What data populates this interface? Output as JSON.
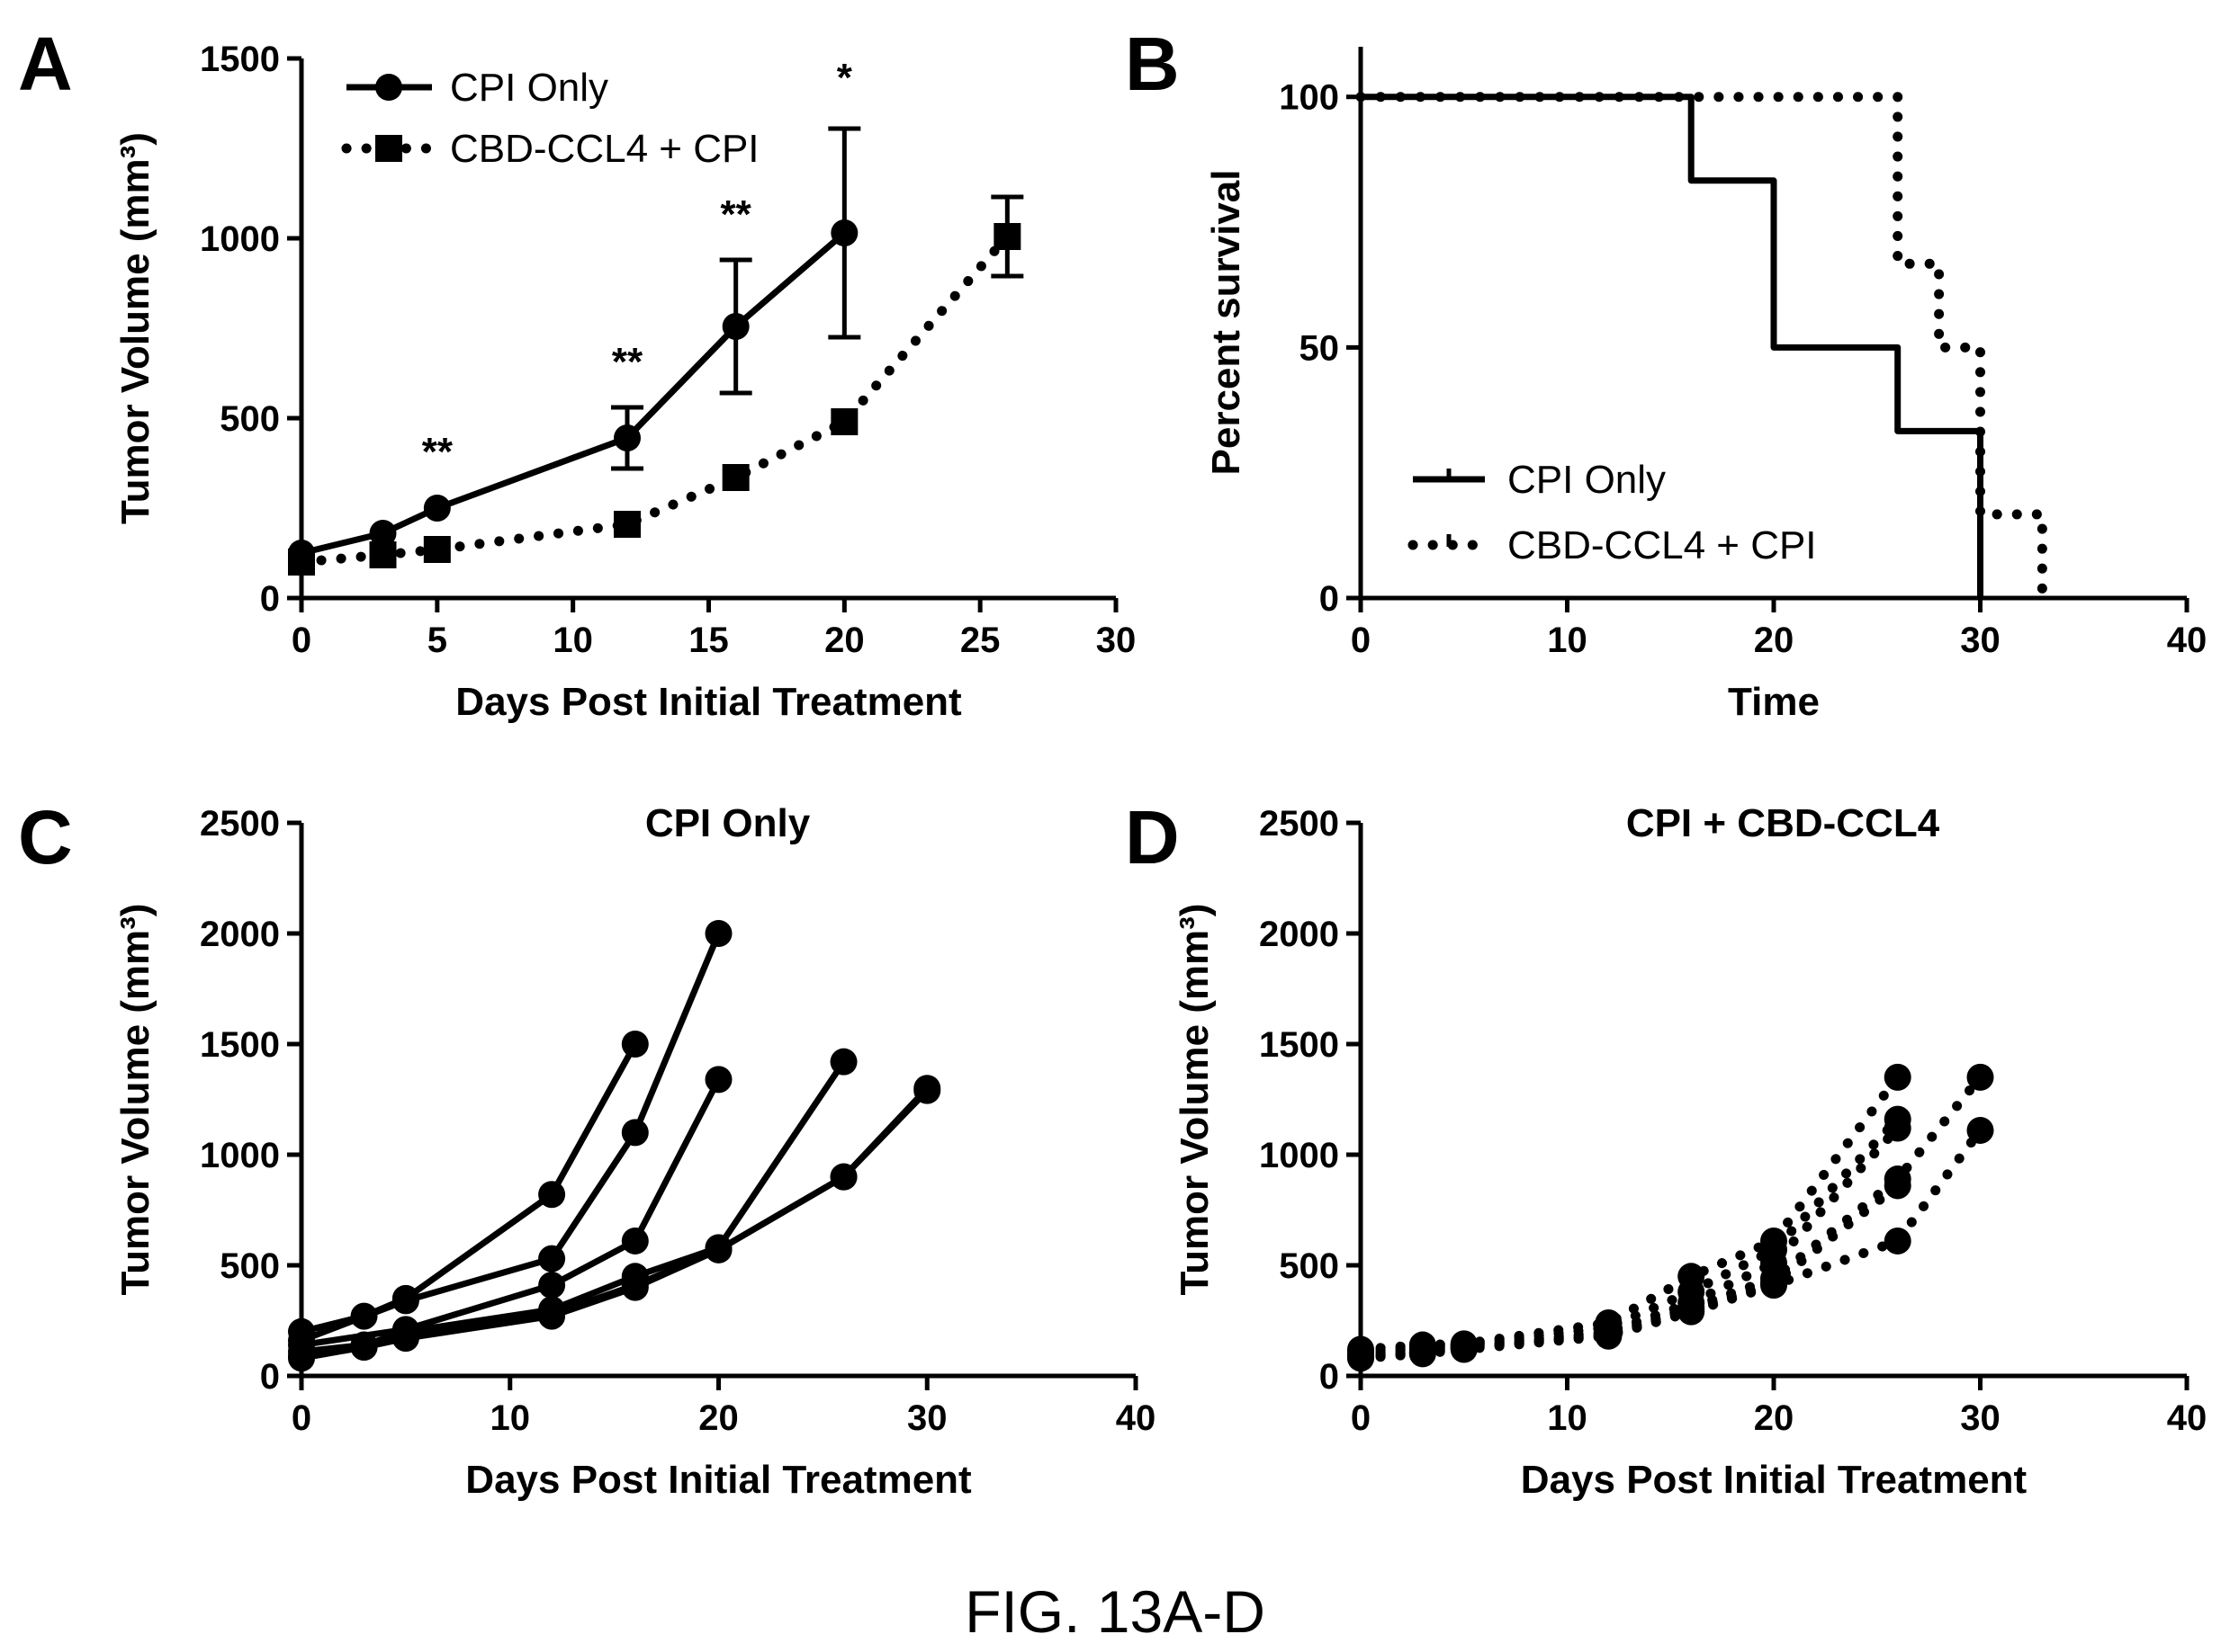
{
  "figure_caption": "FIG. 13A-D",
  "chart_data": [
    {
      "panel": "A",
      "type": "line",
      "title": "",
      "xlabel": "Days Post Initial Treatment",
      "ylabel": "Tumor Volume (mm³)",
      "xlim": [
        0,
        30
      ],
      "ylim": [
        0,
        1500
      ],
      "xticks": [
        0,
        5,
        10,
        15,
        20,
        25,
        30
      ],
      "yticks": [
        0,
        500,
        1000,
        1500
      ],
      "legend_position": "top-left",
      "grid": false,
      "series": [
        {
          "name": "CPI Only",
          "style": "solid",
          "marker": "circle",
          "x": [
            0,
            3,
            5,
            12,
            16,
            20
          ],
          "y": [
            125,
            180,
            250,
            445,
            755,
            1015
          ],
          "error": [
            null,
            null,
            null,
            85,
            185,
            290
          ]
        },
        {
          "name": "CBD-CCL4 + CPI",
          "style": "dotted",
          "marker": "square",
          "x": [
            0,
            3,
            5,
            12,
            16,
            20,
            26
          ],
          "y": [
            100,
            120,
            135,
            205,
            335,
            490,
            1005
          ],
          "error": [
            null,
            null,
            null,
            null,
            null,
            null,
            110
          ]
        }
      ],
      "annotations": [
        {
          "x": 5,
          "y": 370,
          "text": "**"
        },
        {
          "x": 12,
          "y": 620,
          "text": "**"
        },
        {
          "x": 16,
          "y": 1030,
          "text": "**"
        },
        {
          "x": 20,
          "y": 1410,
          "text": "*"
        }
      ]
    },
    {
      "panel": "B",
      "type": "line",
      "title": "",
      "xlabel": "Time",
      "ylabel": "Percent survival",
      "xlim": [
        0,
        40
      ],
      "ylim": [
        0,
        110
      ],
      "xticks": [
        0,
        10,
        20,
        30,
        40
      ],
      "yticks": [
        0,
        50,
        100
      ],
      "legend_position": "bottom-left",
      "grid": false,
      "series": [
        {
          "name": "CPI Only",
          "style": "solid",
          "step": true,
          "x": [
            0,
            16,
            20,
            26,
            30,
            30
          ],
          "y": [
            100,
            83.3,
            50,
            33.3,
            33.3,
            0
          ]
        },
        {
          "name": "CBD-CCL4 + CPI",
          "style": "dotted",
          "step": true,
          "x": [
            0,
            26,
            28,
            30,
            33,
            33
          ],
          "y": [
            100,
            66.7,
            50,
            16.7,
            16.7,
            0
          ]
        }
      ]
    },
    {
      "panel": "C",
      "type": "line",
      "title": "CPI Only",
      "xlabel": "Days Post Initial Treatment",
      "ylabel": "Tumor Volume (mm³)",
      "xlim": [
        0,
        40
      ],
      "ylim": [
        0,
        2500
      ],
      "xticks": [
        0,
        10,
        20,
        30,
        40
      ],
      "yticks": [
        0,
        500,
        1000,
        1500,
        2000,
        2500
      ],
      "grid": false,
      "style": "solid",
      "series": [
        {
          "x": [
            0,
            3,
            5,
            12,
            16
          ],
          "y": [
            200,
            270,
            350,
            820,
            1500
          ]
        },
        {
          "x": [
            0,
            5,
            12,
            16,
            20
          ],
          "y": [
            160,
            340,
            530,
            1100,
            2000
          ]
        },
        {
          "x": [
            0,
            5,
            12,
            16,
            20
          ],
          "y": [
            140,
            210,
            410,
            610,
            1340
          ]
        },
        {
          "x": [
            0,
            3,
            5,
            12,
            16,
            20,
            26
          ],
          "y": [
            110,
            140,
            200,
            300,
            450,
            580,
            1420
          ]
        },
        {
          "x": [
            0,
            3,
            5,
            12,
            16,
            20,
            26,
            30
          ],
          "y": [
            90,
            130,
            180,
            280,
            410,
            570,
            900,
            1300
          ]
        },
        {
          "x": [
            0,
            3,
            5,
            12,
            16,
            20,
            26,
            30
          ],
          "y": [
            80,
            130,
            170,
            270,
            400,
            570,
            900,
            1290
          ]
        }
      ]
    },
    {
      "panel": "D",
      "type": "line",
      "title": "CPI + CBD-CCL4",
      "xlabel": "Days Post Initial Treatment",
      "ylabel": "Tumor Volume (mm³)",
      "xlim": [
        0,
        40
      ],
      "ylim": [
        0,
        2500
      ],
      "xticks": [
        0,
        10,
        20,
        30,
        40
      ],
      "yticks": [
        0,
        500,
        1000,
        1500,
        2000,
        2500
      ],
      "grid": false,
      "style": "dotted",
      "series": [
        {
          "x": [
            0,
            3,
            5,
            12,
            16,
            20,
            26
          ],
          "y": [
            120,
            140,
            145,
            240,
            450,
            610,
            1350
          ]
        },
        {
          "x": [
            0,
            3,
            5,
            12,
            16,
            20,
            26
          ],
          "y": [
            110,
            130,
            140,
            220,
            380,
            570,
            1160
          ]
        },
        {
          "x": [
            0,
            3,
            5,
            12,
            16,
            20,
            26
          ],
          "y": [
            100,
            120,
            135,
            200,
            330,
            510,
            1120
          ]
        },
        {
          "x": [
            0,
            3,
            5,
            12,
            16,
            20,
            26,
            30
          ],
          "y": [
            90,
            110,
            130,
            190,
            310,
            440,
            890,
            1350
          ]
        },
        {
          "x": [
            0,
            3,
            5,
            12,
            16,
            20,
            26,
            30
          ],
          "y": [
            80,
            100,
            120,
            180,
            290,
            410,
            610,
            1110
          ]
        },
        {
          "x": [
            0,
            3,
            5,
            12,
            16,
            20,
            26
          ],
          "y": [
            85,
            105,
            125,
            185,
            300,
            420,
            860
          ]
        }
      ]
    }
  ]
}
